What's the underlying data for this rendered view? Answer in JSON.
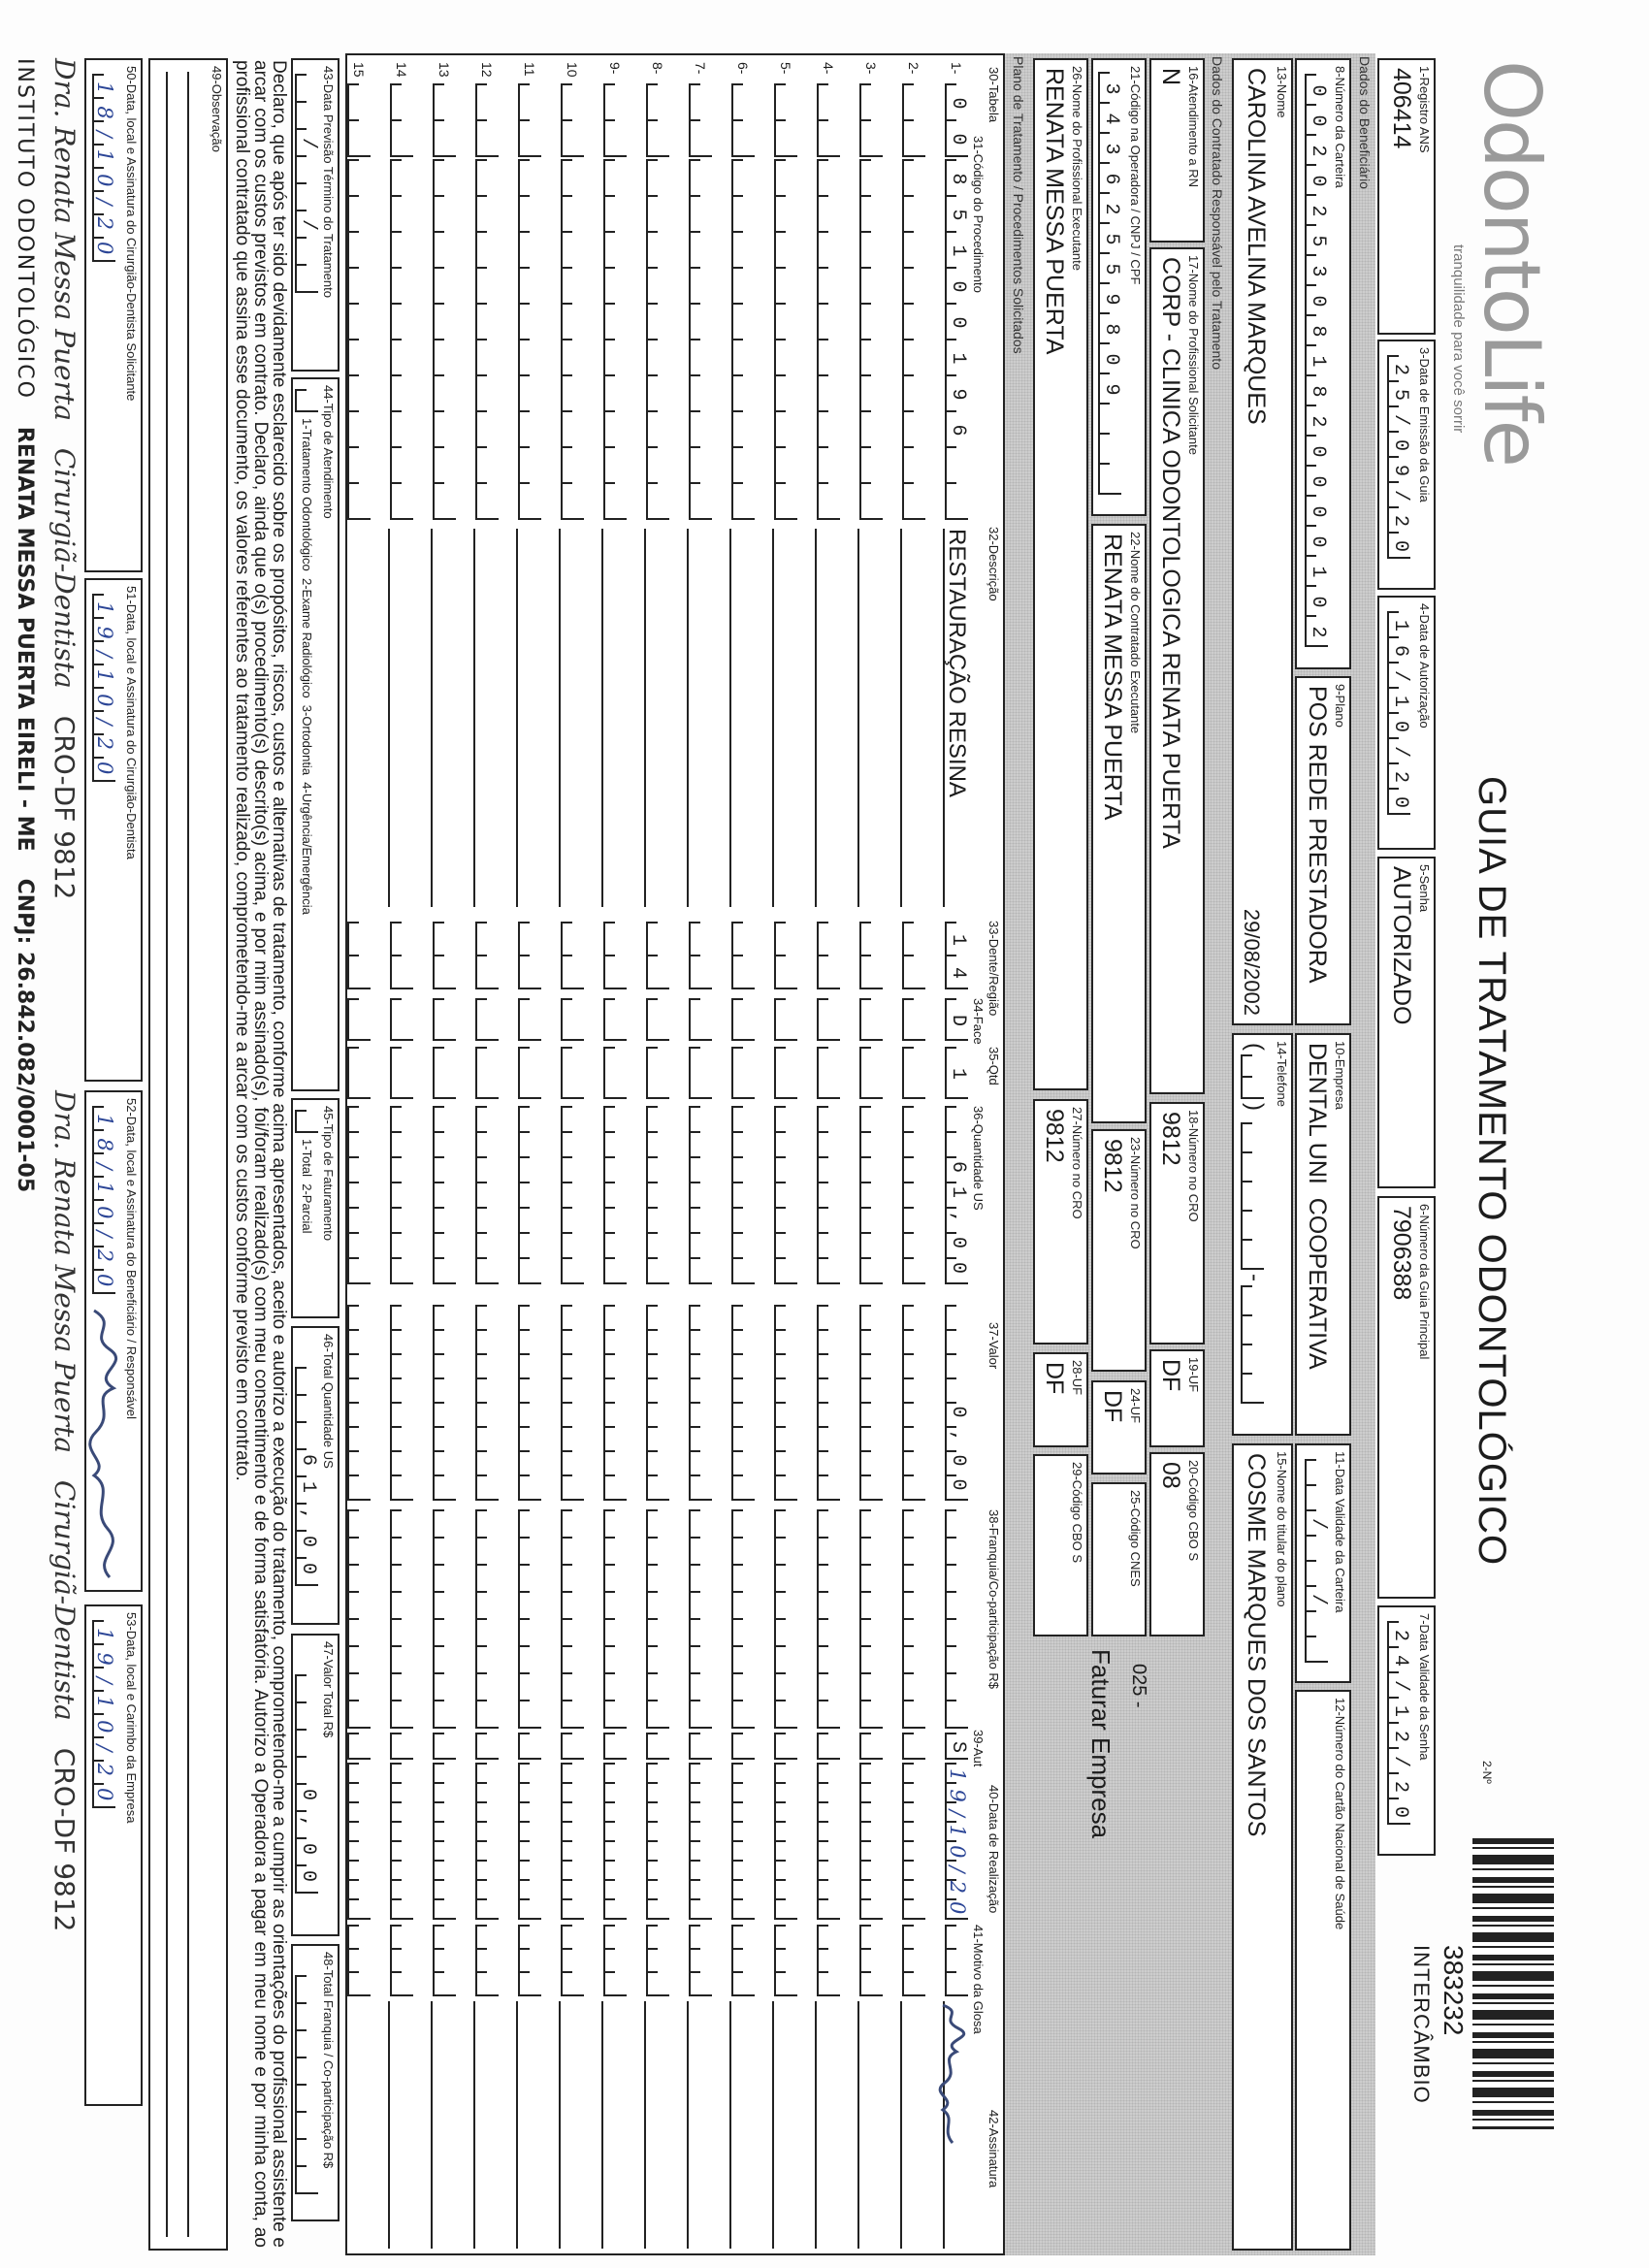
{
  "logo": {
    "brand": "OdontoLife",
    "tagline": "tranquilidade para você sorrir"
  },
  "header": {
    "title": "GUIA DE TRATAMENTO ODONTOLÓGICO",
    "guide_number_label": "2-Nº",
    "guide_number": "383232",
    "guide_type": "INTERCÂMBIO"
  },
  "fields": {
    "f1": {
      "label": "1-Registro ANS",
      "value": "406414"
    },
    "f3": {
      "label": "3-Data de Emissão da Guia",
      "value": "25/09/20"
    },
    "f4": {
      "label": "4-Data de Autorização",
      "value": "16/10/20"
    },
    "f5": {
      "label": "5-Senha",
      "value": "AUTORIZADO"
    },
    "f6": {
      "label": "6-Número da Guia Principal",
      "value": "7906388"
    },
    "f7": {
      "label": "7-Data Validade da Senha",
      "value": "24/12/20"
    },
    "section_beneficiary": "Dados do Beneficiário",
    "f8": {
      "label": "8-Número da Carteira",
      "value": "0020253081820000102"
    },
    "f9": {
      "label": "9-Plano",
      "value": "POS REDE PRESTADORA"
    },
    "f10": {
      "label": "10-Empresa",
      "value": "DENTAL UNI  COOPERATIVA"
    },
    "f11": {
      "label": "11-Data Validade da Carteira",
      "value": "  /  /  "
    },
    "f12": {
      "label": "12-Número do Cartão Nacional de Saúde",
      "value": ""
    },
    "f13": {
      "label": "13-Nome",
      "value": "CAROLINA AVELINA MARQUES",
      "birth_date": "29/08/2002"
    },
    "f14": {
      "label": "14-Telefone",
      "value": ""
    },
    "f15": {
      "label": "15-Nome do titular do plano",
      "value": "COSME MARQUES DOS SANTOS"
    },
    "section_contractor": "Dados do Contratado Responsável pelo Tratamento",
    "f16": {
      "label": "16-Atendimento a RN",
      "value": "N"
    },
    "f17": {
      "label": "17-Nome do Profissional Solicitante",
      "value": "CORP - CLINICA ODONTOLOGICA RENATA PUERTA"
    },
    "f18": {
      "label": "18-Número no CRO",
      "value": "9812"
    },
    "f19": {
      "label": "19-UF",
      "value": "DF"
    },
    "f20": {
      "label": "20-Código CBO S",
      "value": "08"
    },
    "cbo_note": "025 -",
    "billing_note": "Faturar Empresa",
    "f21": {
      "label": "21-Código na Operadora / CNPJ / CPF",
      "value": "34362559809"
    },
    "f22": {
      "label": "22-Nome do Contratado Executante",
      "value": "RENATA MESSA PUERTA"
    },
    "f23": {
      "label": "23-Número no CRO",
      "value": "9812"
    },
    "f24": {
      "label": "24-UF",
      "value": "DF"
    },
    "f25": {
      "label": "25-Código CNES",
      "value": ""
    },
    "f26": {
      "label": "26-Nome do Profissional Executante",
      "value": "RENATA MESSA PUERTA"
    },
    "f27": {
      "label": "27-Número no CRO",
      "value": "9812"
    },
    "f28": {
      "label": "28-UF",
      "value": "DF"
    },
    "f29": {
      "label": "29-Código CBO S",
      "value": ""
    }
  },
  "procedures": {
    "section": "Plano de Tratamento / Procedimentos Solicitados",
    "headers": {
      "tabela": "30-Tabela",
      "codigo": "31-Código do Procedimento",
      "descricao": "32-Descrição",
      "dente": "33-Dente/Região",
      "face": "34-Face",
      "qtd": "35-Qtd",
      "qtd_us": "36-Quantidade US",
      "valor": "37-Valor",
      "franquia": "38-Franquia/Co-participação R$",
      "aut": "39-Aut",
      "data": "40-Data de Realização",
      "glosa": "41-Motivo da Glosa",
      "assinatura": "42-Assinatura"
    },
    "rows": [
      {
        "num": "1-",
        "tabela": "00",
        "codigo": "85100196",
        "descricao": "RESTAURAÇÃO RESINA",
        "dente": "14",
        "face": "D",
        "qtd": "1",
        "qtd_us": "61,00",
        "valor": "0,00",
        "franquia": "",
        "aut": "S",
        "data": "19/10/20",
        "glosa": "",
        "signed": true
      },
      {
        "num": "2-"
      },
      {
        "num": "3-"
      },
      {
        "num": "4-"
      },
      {
        "num": "5-"
      },
      {
        "num": "6-"
      },
      {
        "num": "7-"
      },
      {
        "num": "8-"
      },
      {
        "num": "9-"
      },
      {
        "num": "10"
      },
      {
        "num": "11"
      },
      {
        "num": "12"
      },
      {
        "num": "13"
      },
      {
        "num": "14"
      },
      {
        "num": "15"
      }
    ]
  },
  "footer": {
    "f43": {
      "label": "43-Data Previsão Término do Tratamento",
      "value": "  /  /  "
    },
    "f44": {
      "label": "44-Tipo de Atendimento",
      "options": "1-Tratamento Odontológico  2-Exame Radiológico  3-Ortodontia  4-Urgência/Emergência",
      "value": ""
    },
    "f45": {
      "label": "45-Tipo de Faturamento",
      "options": "1-Total  2-Parcial",
      "value": ""
    },
    "f46": {
      "label": "46-Total Quantidade US",
      "value": "61,00"
    },
    "f47": {
      "label": "47-Valor Total R$",
      "value": "0,00"
    },
    "f48": {
      "label": "48-Total Franquia / Co-participação R$",
      "value": ""
    },
    "declaration": "Declaro, que após ter sido devidamente esclarecido sobre os propósitos, riscos, custos e alternativas de tratamento, conforme acima apresentados, aceito e autorizo a execução do tratamento, comprometendo-me a cumprir as orientações do profissional assistente e arcar com os custos previstos em contrato. Declaro, ainda que o(s) procedimento(s) descrito(s) acima, e por mim assinado(s), foi/foram realizado(s) com meu consentimento e de forma satisfatória. Autorizo a Operadora a pagar em meu nome e por minha conta, ao profissional contratado que assina esse documento, os valores referentes ao tratamento realizado, comprometendo-me a arcar com os custos conforme previsto em contrato.",
    "f49": {
      "label": "49-Observação",
      "value": ""
    },
    "f50": {
      "label": "50-Data, local e Assinatura do Cirurgião-Dentista Solicitante",
      "value": "18/10/20"
    },
    "f51": {
      "label": "51-Data, local e Assinatura do Cirurgião-Dentista",
      "value": "19/10/20"
    },
    "f52": {
      "label": "52-Data, local e Assinatura do Beneficiário / Responsável",
      "value": "18/10/20"
    },
    "f53": {
      "label": "53-Data, local e Carimbo da Empresa",
      "value": "19/10/20"
    }
  },
  "stamps": {
    "dentist": [
      "Dra. Renata Messa Puerta",
      "Cirurgiã-Dentista",
      "CRO-DF 9812"
    ],
    "company": [
      "INSTITUTO ODONTOLÓGICO",
      "RENATA MESSA PUERTA EIRELI - ME",
      "CNPJ: 26.842.082/0001-05"
    ]
  },
  "colors": {
    "ink": "#1c1c1c",
    "handwriting": "#2b4596",
    "section_gray": "#cdcdcd"
  }
}
